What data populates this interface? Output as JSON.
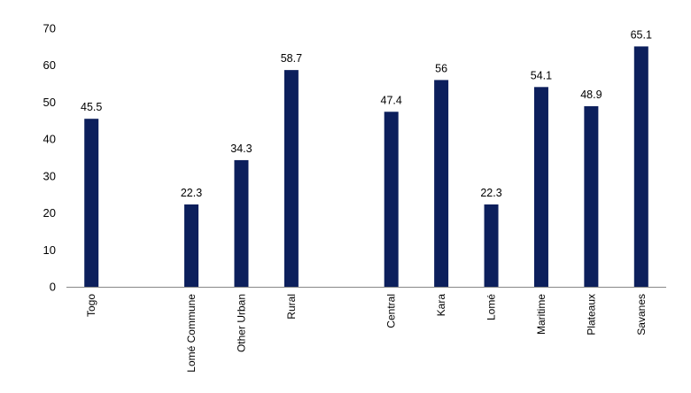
{
  "chart_data": {
    "type": "bar",
    "categories": [
      "Togo",
      "",
      "Lomé Commune",
      "Other Urban",
      "Rural",
      "",
      "Central",
      "Kara",
      "Lomé",
      "Maritime",
      "Plateaux",
      "Savanes"
    ],
    "values": [
      45.5,
      null,
      22.3,
      34.3,
      58.7,
      null,
      47.4,
      56,
      22.3,
      54.1,
      48.9,
      65.1
    ],
    "value_labels": [
      "45.5",
      "",
      "22.3",
      "34.3",
      "58.7",
      "",
      "47.4",
      "56",
      "22.3",
      "54.1",
      "48.9",
      "65.1"
    ],
    "yticks": [
      "0",
      "10",
      "20",
      "30",
      "40",
      "50",
      "60",
      "70"
    ],
    "ylim": [
      0,
      70
    ],
    "bar_color": "#0c1f5c",
    "axis_color": "#888888",
    "grid": false,
    "legend": "none"
  }
}
